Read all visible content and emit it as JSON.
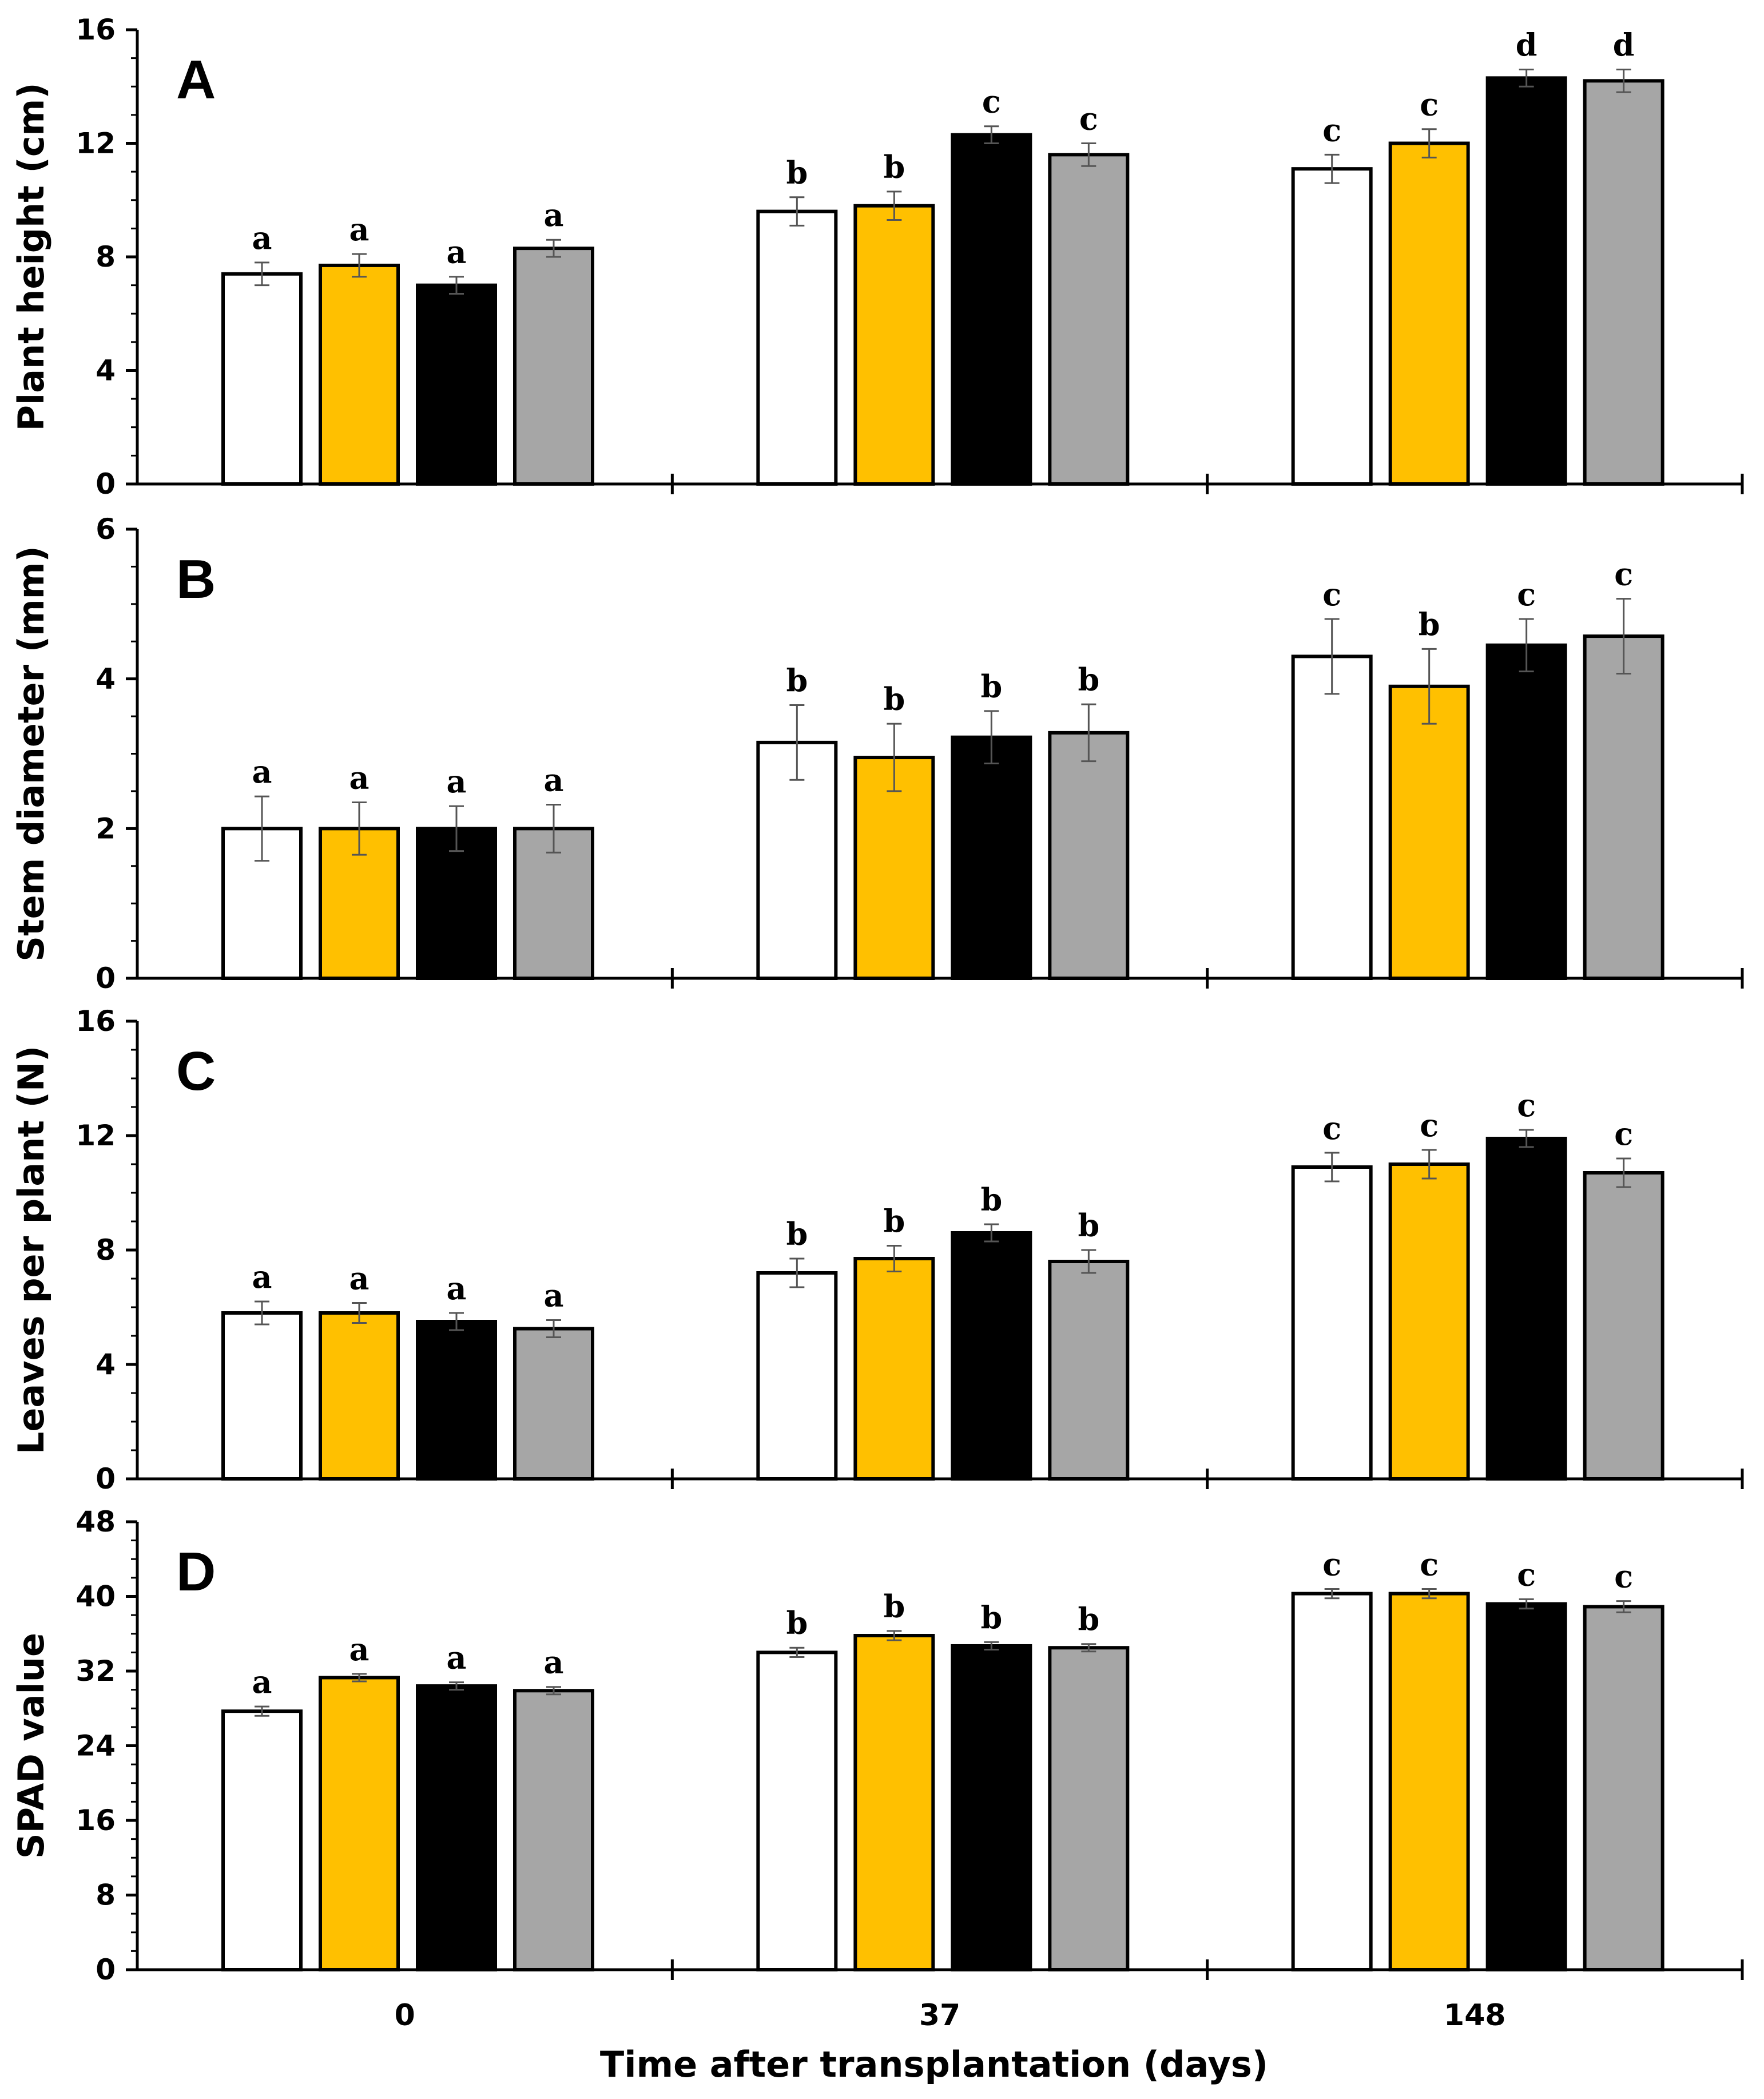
{
  "chart_data": [
    {
      "panel": "A",
      "type": "bar",
      "ylabel": "Plant height (cm)",
      "xlabel": "",
      "ylim": [
        0,
        16
      ],
      "yticks": [
        "0",
        "4",
        "8",
        "12",
        "16"
      ],
      "categories": [
        "0",
        "37",
        "148"
      ],
      "series": [
        {
          "name": "white",
          "color": "#ffffff",
          "values": [
            7.4,
            9.6,
            11.1
          ],
          "errors": [
            0.4,
            0.5,
            0.5
          ],
          "labels": [
            "a",
            "b",
            "c"
          ]
        },
        {
          "name": "yellow",
          "color": "#ffc000",
          "values": [
            7.7,
            9.8,
            12.0
          ],
          "errors": [
            0.4,
            0.5,
            0.5
          ],
          "labels": [
            "a",
            "b",
            "c"
          ]
        },
        {
          "name": "black",
          "color": "#000000",
          "values": [
            7.0,
            12.3,
            14.3
          ],
          "errors": [
            0.3,
            0.3,
            0.3
          ],
          "labels": [
            "a",
            "c",
            "d"
          ]
        },
        {
          "name": "gray",
          "color": "#a6a6a6",
          "values": [
            8.3,
            11.6,
            14.2
          ],
          "errors": [
            0.3,
            0.4,
            0.4
          ],
          "labels": [
            "a",
            "c",
            "d"
          ]
        }
      ]
    },
    {
      "panel": "B",
      "type": "bar",
      "ylabel": "Stem diameter (mm)",
      "xlabel": "",
      "ylim": [
        0,
        6
      ],
      "yticks": [
        "0",
        "2",
        "4",
        "6"
      ],
      "categories": [
        "0",
        "37",
        "148"
      ],
      "series": [
        {
          "name": "white",
          "color": "#ffffff",
          "values": [
            2.0,
            3.15,
            4.3
          ],
          "errors": [
            0.43,
            0.5,
            0.5
          ],
          "labels": [
            "a",
            "b",
            "c"
          ]
        },
        {
          "name": "yellow",
          "color": "#ffc000",
          "values": [
            2.0,
            2.95,
            3.9
          ],
          "errors": [
            0.35,
            0.45,
            0.5
          ],
          "labels": [
            "a",
            "b",
            "b"
          ]
        },
        {
          "name": "black",
          "color": "#000000",
          "values": [
            2.0,
            3.22,
            4.45
          ],
          "errors": [
            0.3,
            0.35,
            0.35
          ],
          "labels": [
            "a",
            "b",
            "c"
          ]
        },
        {
          "name": "gray",
          "color": "#a6a6a6",
          "values": [
            2.0,
            3.28,
            4.57
          ],
          "errors": [
            0.32,
            0.38,
            0.5
          ],
          "labels": [
            "a",
            "b",
            "c"
          ]
        }
      ]
    },
    {
      "panel": "C",
      "type": "bar",
      "ylabel": "Leaves per plant (N)",
      "xlabel": "",
      "ylim": [
        0,
        16
      ],
      "yticks": [
        "0",
        "4",
        "8",
        "12",
        "16"
      ],
      "categories": [
        "0",
        "37",
        "148"
      ],
      "series": [
        {
          "name": "white",
          "color": "#ffffff",
          "values": [
            5.8,
            7.2,
            10.9
          ],
          "errors": [
            0.4,
            0.5,
            0.5
          ],
          "labels": [
            "a",
            "b",
            "c"
          ]
        },
        {
          "name": "yellow",
          "color": "#ffc000",
          "values": [
            5.8,
            7.7,
            11.0
          ],
          "errors": [
            0.35,
            0.45,
            0.5
          ],
          "labels": [
            "a",
            "b",
            "c"
          ]
        },
        {
          "name": "black",
          "color": "#000000",
          "values": [
            5.5,
            8.6,
            11.9
          ],
          "errors": [
            0.3,
            0.3,
            0.3
          ],
          "labels": [
            "a",
            "b",
            "c"
          ]
        },
        {
          "name": "gray",
          "color": "#a6a6a6",
          "values": [
            5.25,
            7.6,
            10.7
          ],
          "errors": [
            0.3,
            0.4,
            0.5
          ],
          "labels": [
            "a",
            "b",
            "c"
          ]
        }
      ]
    },
    {
      "panel": "D",
      "type": "bar",
      "ylabel": "SPAD value",
      "xlabel": "Time after transplantation (days)",
      "ylim": [
        0,
        48
      ],
      "yticks": [
        "0",
        "8",
        "16",
        "24",
        "32",
        "40",
        "48"
      ],
      "categories": [
        "0",
        "37",
        "148"
      ],
      "series": [
        {
          "name": "white",
          "color": "#ffffff",
          "values": [
            27.7,
            34.0,
            40.3
          ],
          "errors": [
            0.5,
            0.5,
            0.5
          ],
          "labels": [
            "a",
            "b",
            "c"
          ]
        },
        {
          "name": "yellow",
          "color": "#ffc000",
          "values": [
            31.3,
            35.8,
            40.3
          ],
          "errors": [
            0.4,
            0.5,
            0.5
          ],
          "labels": [
            "a",
            "b",
            "c"
          ]
        },
        {
          "name": "black",
          "color": "#000000",
          "values": [
            30.4,
            34.7,
            39.2
          ],
          "errors": [
            0.4,
            0.4,
            0.5
          ],
          "labels": [
            "a",
            "b",
            "c"
          ]
        },
        {
          "name": "gray",
          "color": "#a6a6a6",
          "values": [
            29.9,
            34.5,
            38.9
          ],
          "errors": [
            0.4,
            0.4,
            0.6
          ],
          "labels": [
            "a",
            "b",
            "c"
          ]
        }
      ]
    }
  ]
}
